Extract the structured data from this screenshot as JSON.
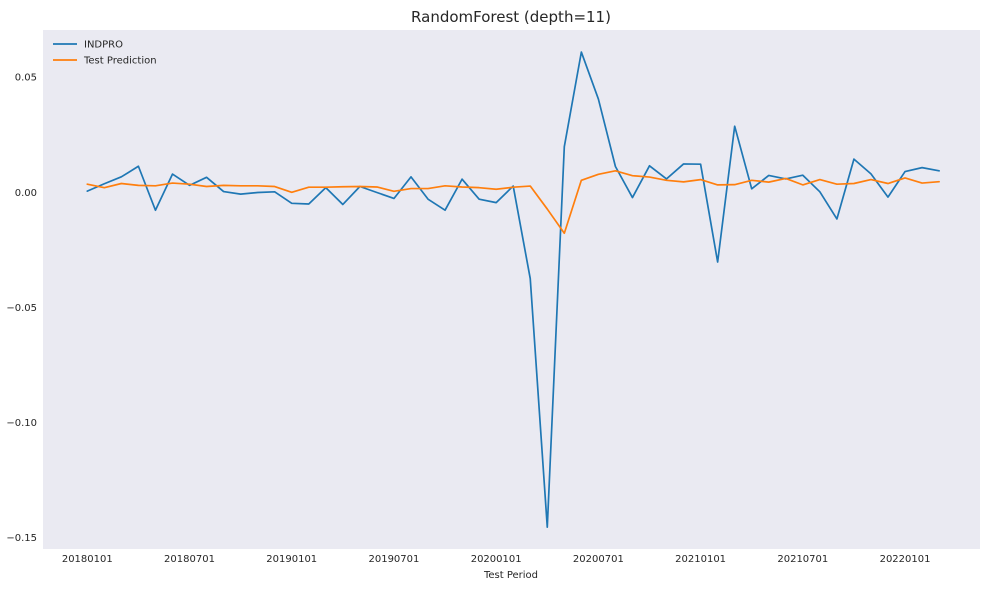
{
  "chart_data": {
    "type": "line",
    "title": "RandomForest (depth=11)",
    "xlabel": "Test Period",
    "ylabel": "",
    "background": "#eaeaf2",
    "grid": false,
    "legend_position": "top-left",
    "x_tick_labels": [
      "20180101",
      "20180701",
      "20190101",
      "20190701",
      "20200101",
      "20200701",
      "20210101",
      "20210701",
      "20220101"
    ],
    "x_tick_index": [
      0,
      6,
      12,
      18,
      24,
      30,
      36,
      42,
      48
    ],
    "x_range": [
      -2.6,
      52.4
    ],
    "y_ticks": [
      0.05,
      0.0,
      -0.05,
      -0.1,
      -0.15
    ],
    "y_tick_labels": [
      "0.05",
      "0.00",
      "−0.05",
      "−0.10",
      "−0.15"
    ],
    "ylim": [
      -0.155,
      0.0705
    ],
    "series": [
      {
        "name": "INDPRO",
        "color": "#1f77b4",
        "values": [
          0.0005,
          0.0037,
          0.0067,
          0.0113,
          -0.0078,
          0.0079,
          0.003,
          0.0065,
          0.0003,
          -0.0008,
          -0.0001,
          0.0002,
          -0.0048,
          -0.0051,
          0.002,
          -0.0053,
          0.0025,
          -0.0001,
          -0.0027,
          0.0067,
          -0.003,
          -0.0078,
          0.0057,
          -0.003,
          -0.0045,
          0.0027,
          -0.0375,
          -0.1455,
          0.0198,
          0.0609,
          0.0405,
          0.0112,
          -0.0023,
          0.0115,
          0.0058,
          0.0123,
          0.0122,
          -0.0303,
          0.0287,
          0.0015,
          0.0073,
          0.0058,
          0.0074,
          0.0002,
          -0.0116,
          0.0144,
          0.008,
          -0.0021,
          0.009,
          0.0107,
          0.0093
        ]
      },
      {
        "name": "Test Prediction",
        "color": "#ff7f0e",
        "values": [
          0.0035,
          0.002,
          0.0038,
          0.003,
          0.0028,
          0.004,
          0.0035,
          0.0025,
          0.003,
          0.0028,
          0.0028,
          0.0025,
          0.0,
          0.0022,
          0.0022,
          0.0024,
          0.0025,
          0.0023,
          0.0004,
          0.0016,
          0.0016,
          0.0028,
          0.0023,
          0.002,
          0.0013,
          0.0022,
          0.0027,
          -0.0073,
          -0.0178,
          0.0052,
          0.0078,
          0.0093,
          0.0072,
          0.0066,
          0.0052,
          0.0045,
          0.0055,
          0.0032,
          0.0033,
          0.0052,
          0.0044,
          0.006,
          0.0032,
          0.0055,
          0.0035,
          0.0038,
          0.0055,
          0.0038,
          0.0062,
          0.004,
          0.0046
        ]
      }
    ]
  }
}
